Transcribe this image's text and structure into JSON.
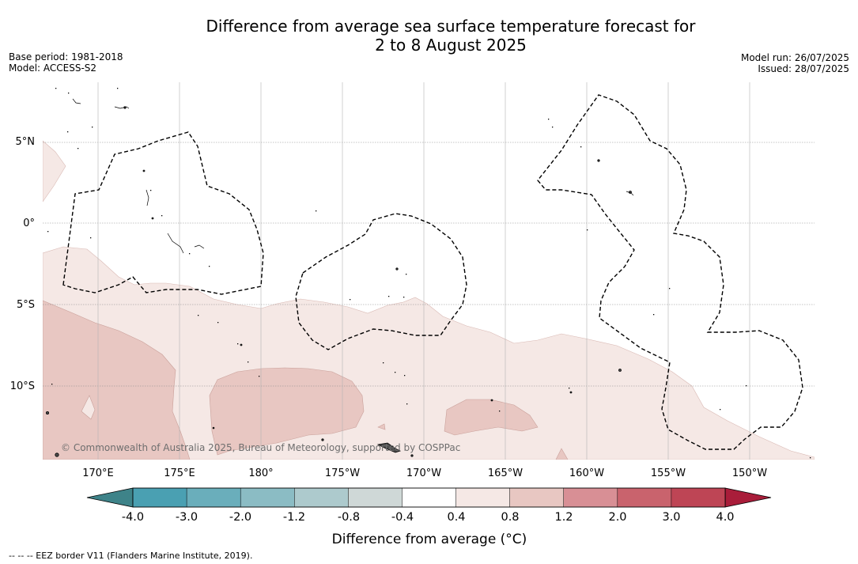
{
  "title": {
    "line1": "Difference from average sea surface temperature forecast for",
    "line2": "2 to 8 August 2025"
  },
  "meta_left": {
    "base_period": "Base period: 1981-2018",
    "model": "Model: ACCESS-S2"
  },
  "meta_right": {
    "model_run": "Model run: 26/07/2025",
    "issued": "Issued: 28/07/2025"
  },
  "map": {
    "lat_labels": [
      "5°N",
      "0°",
      "5°S",
      "10°S"
    ],
    "lon_labels": [
      "170°E",
      "175°E",
      "180°",
      "175°W",
      "170°W",
      "165°W",
      "160°W",
      "155°W",
      "150°W"
    ],
    "copyright": "© Commonwealth of Australia 2025, Bureau of Meteorology, supported by COSPPac",
    "colors": {
      "anomaly_0_4_to_0_8": "#f5e8e5",
      "anomaly_0_8_to_1_2": "#e8c7c2",
      "land": "#555555",
      "eez_border": "#000000"
    }
  },
  "colorbar": {
    "label": "Difference from average (°C)",
    "ticks": [
      "-4.0",
      "-3.0",
      "-2.0",
      "-1.2",
      "-0.8",
      "-0.4",
      "0.4",
      "0.8",
      "1.2",
      "2.0",
      "3.0",
      "4.0"
    ],
    "colors": [
      "#4aa0b2",
      "#6aaebb",
      "#8bbcc4",
      "#adcacd",
      "#cfd8d7",
      "#ffffff",
      "#f5e8e5",
      "#e8c7c2",
      "#d88f95",
      "#c9636d",
      "#be4555"
    ],
    "under_color": "#3e8389",
    "over_color": "#a91d3a"
  },
  "footnote": "-- -- -- EEZ border V11 (Flanders Marine Institute, 2019)."
}
